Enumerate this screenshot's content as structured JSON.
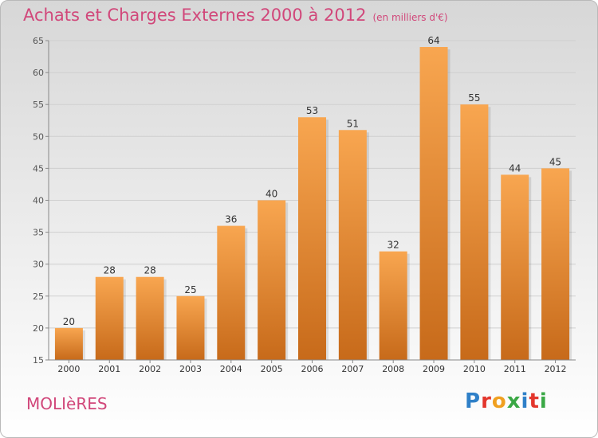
{
  "chart_data": {
    "type": "bar",
    "title": "Achats et Charges Externes 2000 à 2012",
    "subtitle": "(en milliers d'€)",
    "categories": [
      "2000",
      "2001",
      "2002",
      "2003",
      "2004",
      "2005",
      "2006",
      "2007",
      "2008",
      "2009",
      "2010",
      "2011",
      "2012"
    ],
    "values": [
      20,
      28,
      28,
      25,
      36,
      40,
      53,
      51,
      32,
      64,
      55,
      44,
      45
    ],
    "ylim": [
      15,
      65
    ],
    "yticks": [
      15,
      20,
      25,
      30,
      35,
      40,
      45,
      50,
      55,
      60,
      65
    ],
    "grid": true,
    "xlabel": "",
    "ylabel": ""
  },
  "footer": {
    "commune": "MOLIèRES",
    "logo_letters": [
      "P",
      "r",
      "o",
      "x",
      "i",
      "t",
      "i"
    ],
    "logo_colors": [
      "#2f80c8",
      "#e3362c",
      "#f0a020",
      "#3aa845",
      "#2f80c8",
      "#e3362c",
      "#3aa845"
    ]
  },
  "colors": {
    "bar_top": "#f8a650",
    "bar_bottom": "#c76a1a",
    "title": "#d1477a",
    "grid": "#cfcfcf"
  }
}
